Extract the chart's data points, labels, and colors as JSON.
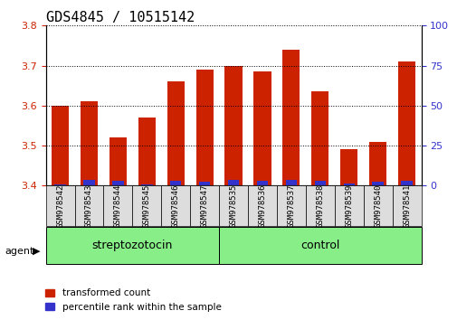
{
  "title": "GDS4845 / 10515142",
  "categories": [
    "GSM978542",
    "GSM978543",
    "GSM978544",
    "GSM978545",
    "GSM978546",
    "GSM978547",
    "GSM978535",
    "GSM978536",
    "GSM978537",
    "GSM978538",
    "GSM978539",
    "GSM978540",
    "GSM978541"
  ],
  "red_values": [
    3.6,
    3.61,
    3.52,
    3.57,
    3.66,
    3.69,
    3.7,
    3.685,
    3.74,
    3.635,
    3.49,
    3.51,
    3.71
  ],
  "blue_values": [
    3.404,
    3.415,
    3.412,
    3.404,
    3.413,
    3.409,
    3.414,
    3.413,
    3.414,
    3.412,
    3.406,
    3.409,
    3.412
  ],
  "ylim_left": [
    3.4,
    3.8
  ],
  "ylim_right": [
    0,
    100
  ],
  "yticks_left": [
    3.4,
    3.5,
    3.6,
    3.7,
    3.8
  ],
  "yticks_right": [
    0,
    25,
    50,
    75,
    100
  ],
  "baseline": 3.4,
  "group1_label": "streptozotocin",
  "group1_count": 6,
  "group2_label": "control",
  "group2_count": 7,
  "agent_label": "agent",
  "legend1": "transformed count",
  "legend2": "percentile rank within the sample",
  "red_color": "#cc2200",
  "blue_color": "#3333cc",
  "group_bg_color": "#88ee88",
  "tick_bg_color": "#dddddd",
  "bar_width": 0.6,
  "title_fontsize": 11,
  "tick_fontsize": 8,
  "label_fontsize": 8
}
